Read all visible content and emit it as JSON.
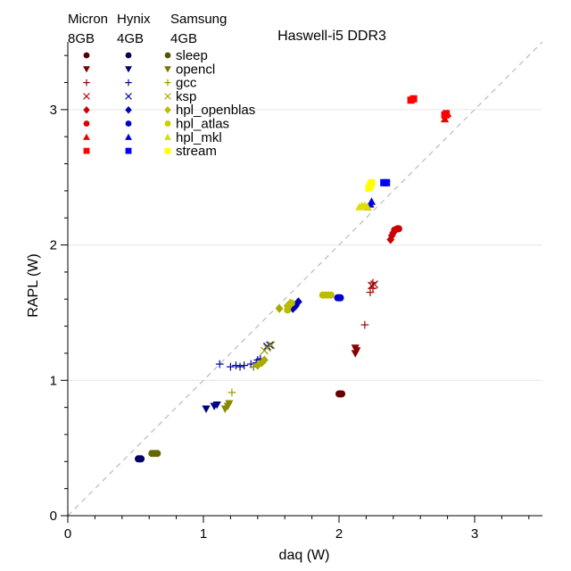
{
  "chart_data": {
    "type": "scatter",
    "title": "Haswell-i5 DDR3",
    "xlabel": "daq (W)",
    "ylabel": "RAPL (W)",
    "xlim": [
      0,
      3.5
    ],
    "ylim": [
      0,
      3.5
    ],
    "xticks": [
      "0",
      "1",
      "2",
      "3"
    ],
    "yticks": [
      "0",
      "1",
      "2",
      "3"
    ],
    "grid": "horizontal",
    "reference_line": "y = x, dashed",
    "legend_placement": "top-left",
    "memory_groups": [
      {
        "line1": "Micron",
        "line2": "8GB",
        "color": "#aa0000"
      },
      {
        "line1": "Hynix",
        "line2": "4GB",
        "color": "#0000cc"
      },
      {
        "line1": "Samsung",
        "line2": "4GB",
        "color": "#cccc00"
      }
    ],
    "workloads": [
      {
        "name": "sleep",
        "marker": "circle"
      },
      {
        "name": "opencl",
        "marker": "triangle-down"
      },
      {
        "name": "gcc",
        "marker": "plus"
      },
      {
        "name": "ksp",
        "marker": "x"
      },
      {
        "name": "hpl_openblas",
        "marker": "diamond"
      },
      {
        "name": "hpl_atlas",
        "marker": "circle"
      },
      {
        "name": "hpl_mkl",
        "marker": "triangle-up"
      },
      {
        "name": "stream",
        "marker": "square"
      }
    ],
    "legend_colors": {
      "Micron": [
        "#550000",
        "#770000",
        "#990000",
        "#bb0000",
        "#cc0000",
        "#dd0000",
        "#ee0000",
        "#ff0000"
      ],
      "Hynix": [
        "#000055",
        "#000077",
        "#000099",
        "#0000aa",
        "#0000bb",
        "#0000cc",
        "#0000dd",
        "#0000ff"
      ],
      "Samsung": [
        "#555500",
        "#777700",
        "#999900",
        "#aaaa00",
        "#bbbb00",
        "#cccc00",
        "#dddd00",
        "#ffff00"
      ]
    },
    "series": [
      {
        "memory": "Micron",
        "workload": "sleep",
        "marker": "circle",
        "color": "#660000",
        "x": [
          2.0,
          2.01,
          2.02
        ],
        "y": [
          0.9,
          0.9,
          0.9
        ]
      },
      {
        "memory": "Micron",
        "workload": "opencl",
        "marker": "triangle-down",
        "color": "#880000",
        "x": [
          2.12,
          2.13,
          2.12
        ],
        "y": [
          1.24,
          1.22,
          1.2
        ]
      },
      {
        "memory": "Micron",
        "workload": "gcc",
        "marker": "plus",
        "color": "#aa0000",
        "x": [
          2.19,
          2.23,
          2.25,
          2.25
        ],
        "y": [
          1.41,
          1.65,
          1.68,
          1.72
        ]
      },
      {
        "memory": "Micron",
        "workload": "ksp",
        "marker": "x",
        "color": "#aa0000",
        "x": [
          2.24,
          2.26
        ],
        "y": [
          1.7,
          1.71
        ]
      },
      {
        "memory": "Micron",
        "workload": "hpl_openblas",
        "marker": "diamond",
        "color": "#cc0000",
        "x": [
          2.38,
          2.39,
          2.4
        ],
        "y": [
          2.04,
          2.07,
          2.09
        ]
      },
      {
        "memory": "Micron",
        "workload": "hpl_atlas",
        "marker": "circle",
        "color": "#cc0000",
        "x": [
          2.41,
          2.43,
          2.44
        ],
        "y": [
          2.11,
          2.12,
          2.12
        ]
      },
      {
        "memory": "Micron",
        "workload": "hpl_mkl",
        "marker": "triangle-up",
        "color": "#ee0000",
        "x": [
          2.78,
          2.79,
          2.8
        ],
        "y": [
          2.93,
          2.96,
          2.97
        ]
      },
      {
        "memory": "Micron",
        "workload": "stream",
        "marker": "square",
        "color": "#ff0000",
        "x": [
          2.53,
          2.55,
          2.78,
          2.79
        ],
        "y": [
          3.07,
          3.08,
          2.96,
          2.97
        ]
      },
      {
        "memory": "Hynix",
        "workload": "sleep",
        "marker": "circle",
        "color": "#000066",
        "x": [
          0.52,
          0.53,
          0.54
        ],
        "y": [
          0.42,
          0.42,
          0.42
        ]
      },
      {
        "memory": "Hynix",
        "workload": "opencl",
        "marker": "triangle-down",
        "color": "#000088",
        "x": [
          1.02,
          1.08,
          1.1
        ],
        "y": [
          0.79,
          0.81,
          0.82
        ]
      },
      {
        "memory": "Hynix",
        "workload": "gcc",
        "marker": "plus",
        "color": "#0000aa",
        "x": [
          1.12,
          1.2,
          1.24,
          1.27,
          1.3,
          1.35,
          1.37,
          1.39,
          1.4,
          1.42
        ],
        "y": [
          1.12,
          1.1,
          1.11,
          1.1,
          1.11,
          1.12,
          1.1,
          1.13,
          1.15,
          1.16
        ]
      },
      {
        "memory": "Hynix",
        "workload": "ksp",
        "marker": "x",
        "color": "#0000aa",
        "x": [
          1.47,
          1.49
        ],
        "y": [
          1.25,
          1.26
        ]
      },
      {
        "memory": "Hynix",
        "workload": "hpl_openblas",
        "marker": "diamond",
        "color": "#0000bb",
        "x": [
          1.66,
          1.68,
          1.7
        ],
        "y": [
          1.53,
          1.55,
          1.58
        ]
      },
      {
        "memory": "Hynix",
        "workload": "hpl_atlas",
        "marker": "circle",
        "color": "#0000cc",
        "x": [
          1.99,
          2.0,
          2.01
        ],
        "y": [
          1.61,
          1.61,
          1.61
        ]
      },
      {
        "memory": "Hynix",
        "workload": "hpl_mkl",
        "marker": "triangle-up",
        "color": "#0000dd",
        "x": [
          2.21,
          2.23,
          2.24
        ],
        "y": [
          2.28,
          2.3,
          2.32
        ]
      },
      {
        "memory": "Hynix",
        "workload": "stream",
        "marker": "square",
        "color": "#0000ff",
        "x": [
          2.33,
          2.35
        ],
        "y": [
          2.46,
          2.46
        ]
      },
      {
        "memory": "Samsung",
        "workload": "sleep",
        "marker": "circle",
        "color": "#666600",
        "x": [
          0.62,
          0.64,
          0.66
        ],
        "y": [
          0.46,
          0.46,
          0.46
        ]
      },
      {
        "memory": "Samsung",
        "workload": "opencl",
        "marker": "triangle-down",
        "color": "#888800",
        "x": [
          1.16,
          1.18,
          1.19
        ],
        "y": [
          0.79,
          0.81,
          0.83
        ]
      },
      {
        "memory": "Samsung",
        "workload": "gcc",
        "marker": "plus",
        "color": "#999900",
        "x": [
          1.21,
          1.37,
          1.4
        ],
        "y": [
          0.91,
          1.1,
          1.12
        ]
      },
      {
        "memory": "Samsung",
        "workload": "ksp",
        "marker": "x",
        "color": "#999900",
        "x": [
          1.45,
          1.47,
          1.5
        ],
        "y": [
          1.22,
          1.24,
          1.26
        ]
      },
      {
        "memory": "Samsung",
        "workload": "hpl_openblas",
        "marker": "diamond",
        "color": "#aaaa00",
        "x": [
          1.4,
          1.43,
          1.45,
          1.56,
          1.62,
          1.64
        ],
        "y": [
          1.11,
          1.13,
          1.15,
          1.53,
          1.55,
          1.57
        ]
      },
      {
        "memory": "Samsung",
        "workload": "hpl_atlas",
        "marker": "circle",
        "color": "#bbbb00",
        "x": [
          1.62,
          1.63,
          1.65,
          1.88,
          1.9,
          1.92,
          1.94
        ],
        "y": [
          1.52,
          1.55,
          1.57,
          1.63,
          1.63,
          1.63,
          1.63
        ]
      },
      {
        "memory": "Samsung",
        "workload": "hpl_mkl",
        "marker": "triangle-up",
        "color": "#dddd00",
        "x": [
          2.15,
          2.17,
          2.19,
          2.21
        ],
        "y": [
          2.28,
          2.29,
          2.29,
          2.28
        ]
      },
      {
        "memory": "Samsung",
        "workload": "stream",
        "marker": "square",
        "color": "#ffff00",
        "x": [
          2.22,
          2.23,
          2.24
        ],
        "y": [
          2.42,
          2.44,
          2.46
        ]
      }
    ]
  }
}
